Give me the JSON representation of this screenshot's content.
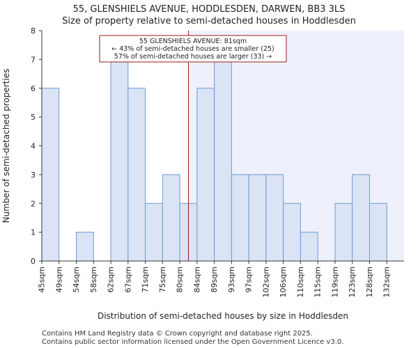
{
  "chart_data": {
    "type": "bar",
    "title": "55, GLENSHIELS AVENUE, HODDLESDEN, DARWEN, BB3 3LS",
    "subtitle": "Size of property relative to semi-detached houses in Hoddlesden",
    "xlabel": "Distribution of semi-detached houses by size in Hoddlesden",
    "ylabel": "Number of semi-detached properties",
    "categories": [
      "45sqm",
      "49sqm",
      "54sqm",
      "58sqm",
      "62sqm",
      "67sqm",
      "71sqm",
      "75sqm",
      "80sqm",
      "84sqm",
      "89sqm",
      "93sqm",
      "97sqm",
      "102sqm",
      "106sqm",
      "110sqm",
      "115sqm",
      "119sqm",
      "123sqm",
      "128sqm",
      "132sqm"
    ],
    "values": [
      6,
      0,
      1,
      0,
      7,
      6,
      2,
      3,
      2,
      6,
      7,
      3,
      3,
      3,
      2,
      1,
      0,
      2,
      3,
      2,
      0
    ],
    "yticks": [
      0,
      1,
      2,
      3,
      4,
      5,
      6,
      7,
      8
    ],
    "ylim": [
      0,
      8
    ],
    "marker_category_index": 8.5,
    "annotation": {
      "line1": "55 GLENSHIELS AVENUE: 81sqm",
      "line2": "← 43% of semi-detached houses are smaller (25)",
      "line3": "57% of semi-detached houses are larger (33) →"
    },
    "colors": {
      "bar_fill": "#dae4f4",
      "bar_edge": "#6f9ad0",
      "marker": "#9b1a1a",
      "shade": "#eef1fb"
    }
  },
  "footer": {
    "line1": "Contains HM Land Registry data © Crown copyright and database right 2025.",
    "line2": "Contains public sector information licensed under the Open Government Licence v3.0."
  }
}
